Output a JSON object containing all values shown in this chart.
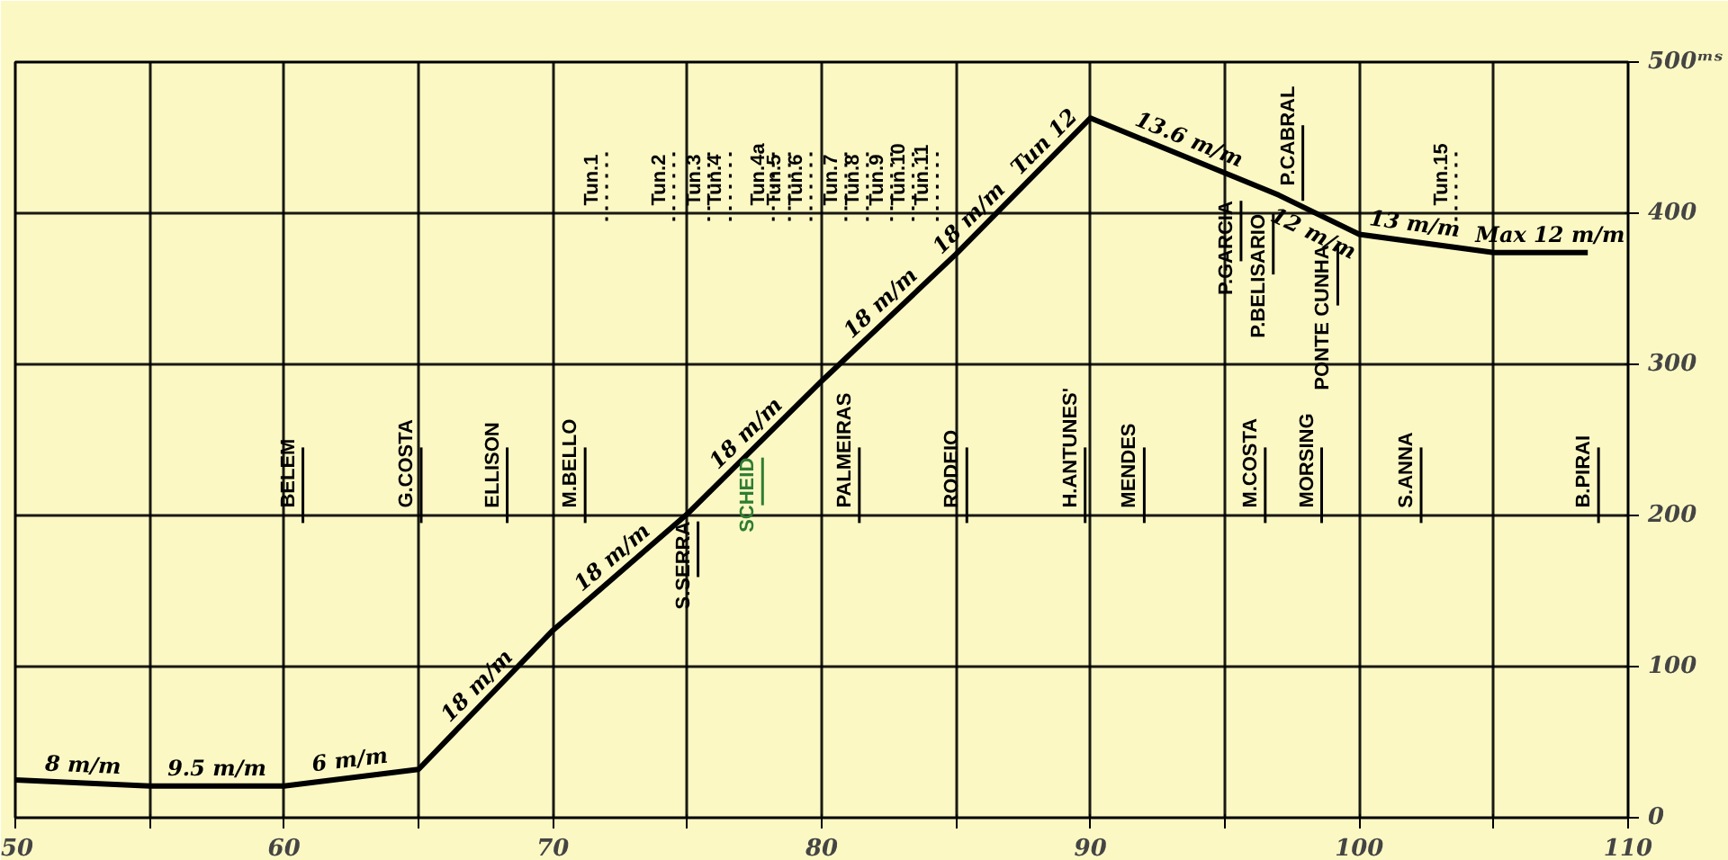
{
  "chart_data": {
    "type": "line",
    "xlim": [
      50,
      110
    ],
    "ylim": [
      0,
      500
    ],
    "xticks": [
      50,
      {
        "value": 55,
        "label": null
      },
      60,
      {
        "value": 65,
        "label": null
      },
      70,
      {
        "value": 75,
        "label": null
      },
      80,
      {
        "value": 85,
        "label": null
      },
      90,
      {
        "value": 95,
        "label": null
      },
      100,
      {
        "value": 105,
        "label": null
      },
      110
    ],
    "yticks": [
      0,
      100,
      200,
      300,
      400,
      {
        "value": 500,
        "label": "500ᵐˢ"
      }
    ],
    "grid": true,
    "marker": "none",
    "line_style": "solid",
    "series": [
      {
        "color": "#000000",
        "x": [
          50,
          55,
          60,
          65,
          70,
          75,
          80,
          85,
          90,
          97,
          100,
          105,
          108.5
        ],
        "values": [
          25,
          21,
          21,
          32,
          124,
          201,
          289,
          373,
          463,
          412,
          386,
          374,
          374
        ]
      }
    ],
    "annotations": [
      {
        "text": "8 m/m",
        "x": 52.5,
        "y": 23
      },
      {
        "text": "9.5 m/m",
        "x": 57.5,
        "y": 21
      },
      {
        "text": "6 m/m",
        "x": 62.5,
        "y": 26.5
      },
      {
        "text": "18 m/m",
        "x": 67.5,
        "y": 78
      },
      {
        "text": "18 m/m",
        "x": 72.5,
        "y": 162.5
      },
      {
        "text": "18 m/m",
        "x": 77.5,
        "y": 245
      },
      {
        "text": "18 m/m",
        "x": 82.5,
        "y": 331
      },
      {
        "text": "18 m/m",
        "x": 85.8,
        "y": 387.4
      },
      {
        "text": "Tun 12",
        "x": 88.6,
        "y": 437.8
      },
      {
        "text": "13.6 m/m",
        "x": 93.5,
        "y": 437.5
      },
      {
        "text": "12 m/m",
        "x": 98.5,
        "y": 399
      },
      {
        "text": "13 m/m",
        "x": 102,
        "y": 381.2
      },
      {
        "text": "Max 12 m/m",
        "x": 107.1,
        "y": 374
      }
    ],
    "ref_lines": [
      {
        "axis": "x",
        "value": 60.7,
        "label": "BELEM",
        "line_style": "solid"
      },
      {
        "axis": "x",
        "value": 65.1,
        "label": "G.COSTA",
        "line_style": "solid"
      },
      {
        "axis": "x",
        "value": 68.3,
        "label": "ELLISON",
        "line_style": "solid"
      },
      {
        "axis": "x",
        "value": 71.2,
        "label": "M.BELLO",
        "line_style": "solid"
      },
      {
        "axis": "x",
        "value": 75.4,
        "label": "S.SERRA",
        "line_style": "solid"
      },
      {
        "axis": "x",
        "value": 77.8,
        "label": "SCHEID",
        "line_style": "solid",
        "color": "#2e7d32"
      },
      {
        "axis": "x",
        "value": 81.4,
        "label": "PALMEIRAS",
        "line_style": "solid"
      },
      {
        "axis": "x",
        "value": 85.4,
        "label": "RODEIO",
        "line_style": "solid"
      },
      {
        "axis": "x",
        "value": 89.8,
        "label": "H.ANTUNES'",
        "line_style": "solid"
      },
      {
        "axis": "x",
        "value": 92,
        "label": "MENDES",
        "line_style": "solid"
      },
      {
        "axis": "x",
        "value": 96.5,
        "label": "M.COSTA",
        "line_style": "solid"
      },
      {
        "axis": "x",
        "value": 98.6,
        "label": "MORSING",
        "line_style": "solid"
      },
      {
        "axis": "x",
        "value": 102.3,
        "label": "S.ANNA",
        "line_style": "solid"
      },
      {
        "axis": "x",
        "value": 108.9,
        "label": "B.PIRAI",
        "line_style": "solid"
      },
      {
        "axis": "x",
        "value": 95.6,
        "label": "P.GARCIA",
        "line_style": "solid"
      },
      {
        "axis": "x",
        "value": 96.8,
        "label": "P.BELISARIO",
        "line_style": "solid"
      },
      {
        "axis": "x",
        "value": 97.9,
        "label": "P.CABRAL",
        "line_style": "solid"
      },
      {
        "axis": "x",
        "value": 99.2,
        "label": "PONTE CUNHA",
        "line_style": "solid"
      },
      {
        "axis": "x",
        "value": 72,
        "label": "Tun.1",
        "line_style": "dotted"
      },
      {
        "axis": "x",
        "value": 74.5,
        "label": "Tun.2",
        "line_style": "dotted"
      },
      {
        "axis": "x",
        "value": 75.8,
        "label": "Tun.3",
        "line_style": "dotted"
      },
      {
        "axis": "x",
        "value": 76.6,
        "label": "Tun.4",
        "line_style": "dotted"
      },
      {
        "axis": "x",
        "value": 78.2,
        "label": "Tun.4a",
        "line_style": "dotted"
      },
      {
        "axis": "x",
        "value": 78.8,
        "label": "Tun.5",
        "line_style": "dotted"
      },
      {
        "axis": "x",
        "value": 79.6,
        "label": "Tun.6",
        "line_style": "dotted"
      },
      {
        "axis": "x",
        "value": 80.9,
        "label": "Tun.7",
        "line_style": "dotted"
      },
      {
        "axis": "x",
        "value": 81.7,
        "label": "Tun.8",
        "line_style": "dotted"
      },
      {
        "axis": "x",
        "value": 82.6,
        "label": "Tun.9",
        "line_style": "dotted"
      },
      {
        "axis": "x",
        "value": 83.4,
        "label": "Tun.10",
        "line_style": "dotted"
      },
      {
        "axis": "x",
        "value": 84.3,
        "label": "Tun.11",
        "line_style": "dotted"
      },
      {
        "axis": "x",
        "value": 103.6,
        "label": "Tun.15",
        "line_style": "dotted"
      }
    ]
  }
}
